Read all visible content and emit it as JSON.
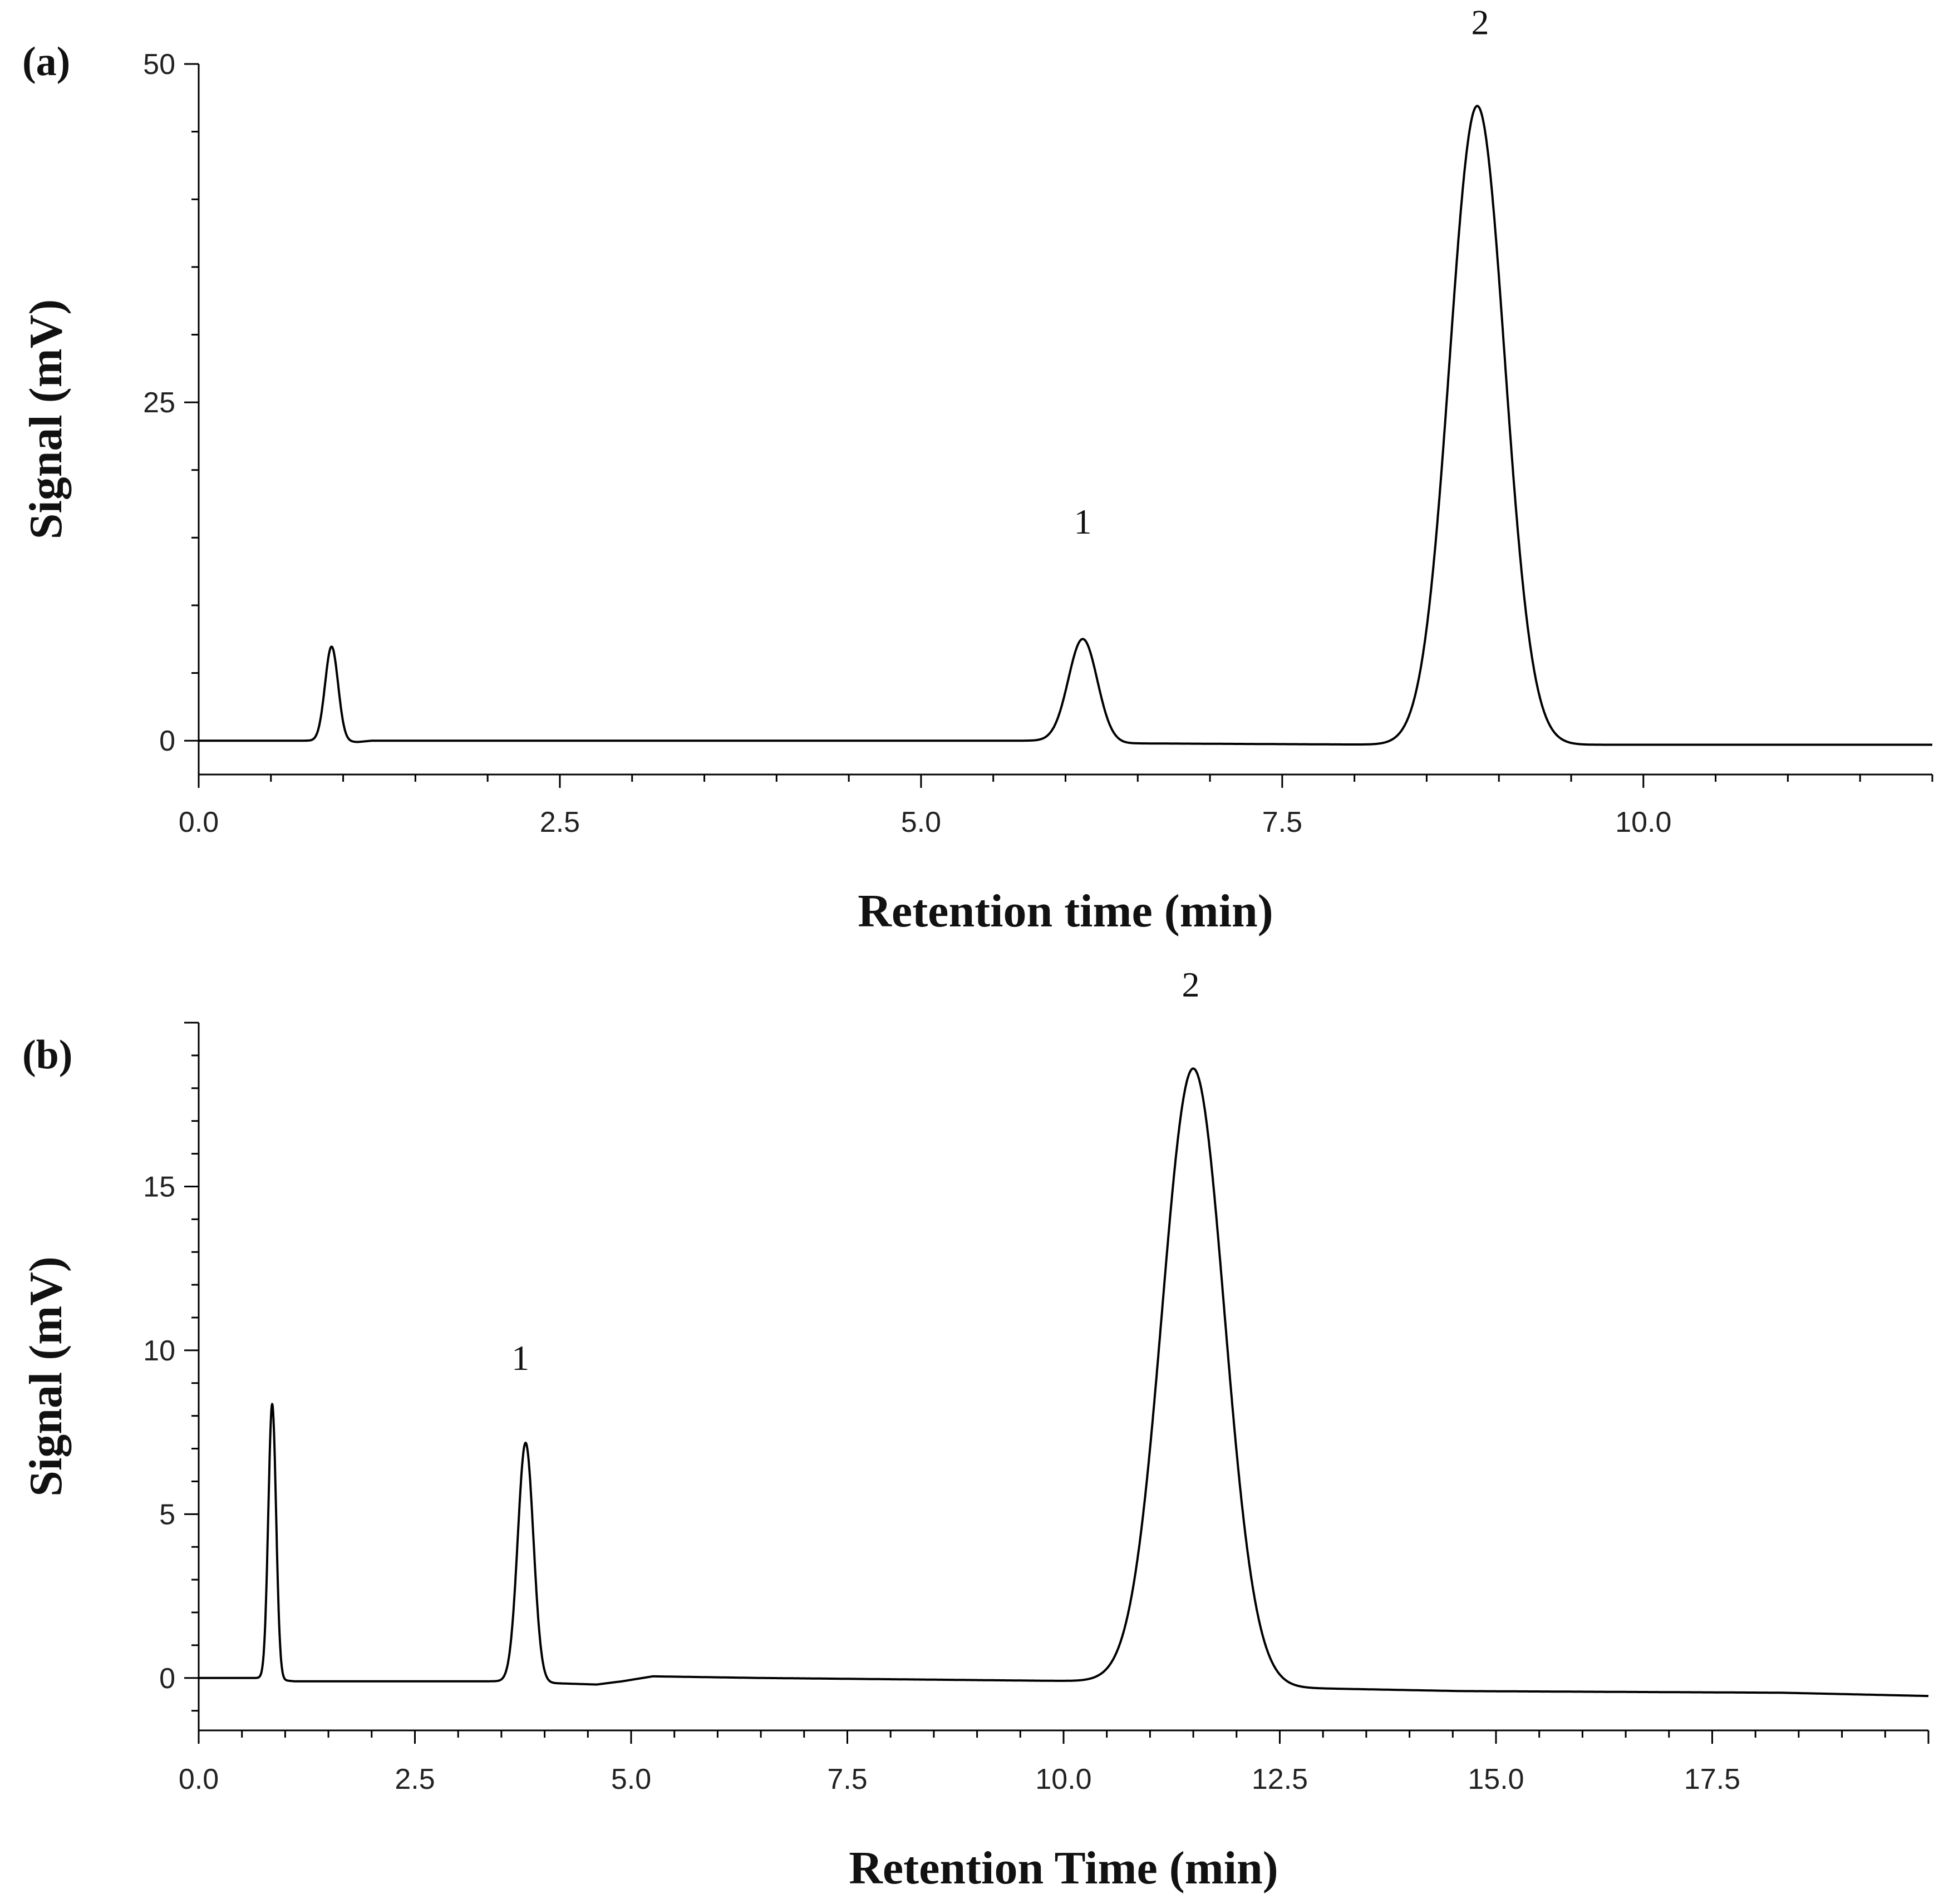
{
  "chart_data": [
    {
      "type": "line",
      "panel_label": "(a)",
      "xlabel": "Retention time (min)",
      "ylabel": "Signal (mV)",
      "xlim": [
        0,
        12
      ],
      "ylim": [
        -2.5,
        50
      ],
      "x_ticks": [
        "0.0",
        "2.5",
        "5.0",
        "7.5",
        "10.0"
      ],
      "y_ticks": [
        "0",
        "25",
        "50"
      ],
      "grid": false,
      "series": [
        {
          "baseline": [
            [
              0,
              0
            ],
            [
              0.75,
              0
            ],
            [
              1.1,
              -0.1
            ],
            [
              1.2,
              0
            ],
            [
              5.9,
              0
            ],
            [
              6.4,
              -0.2
            ],
            [
              6.5,
              -0.2
            ],
            [
              8.3,
              -0.3
            ],
            [
              9.6,
              -0.3
            ],
            [
              12,
              -0.3
            ]
          ],
          "peaks": [
            {
              "rt": 0.92,
              "height": 7.0,
              "sigma": 0.045
            },
            {
              "rt": 6.12,
              "height": 7.6,
              "sigma": 0.1
            },
            {
              "rt": 8.85,
              "height": 47.2,
              "sigma": 0.19
            }
          ]
        }
      ],
      "annotations": [
        {
          "text": "1",
          "x": 6.12,
          "y": 15.3
        },
        {
          "text": "2",
          "x": 8.87,
          "y": 52.2
        }
      ]
    },
    {
      "type": "line",
      "panel_label": "(b)",
      "xlabel": "Retention Time (min)",
      "ylabel": "Signal (mV)",
      "xlim": [
        0,
        20
      ],
      "ylim": [
        -1.6,
        20
      ],
      "x_ticks": [
        "0.0",
        "2.5",
        "5.0",
        "7.5",
        "10.0",
        "12.5",
        "15.0",
        "17.5"
      ],
      "y_ticks": [
        "0",
        "5",
        "10",
        "15"
      ],
      "grid": false,
      "series": [
        {
          "baseline": [
            [
              0,
              0
            ],
            [
              0.7,
              0
            ],
            [
              1.1,
              -0.1
            ],
            [
              3.6,
              -0.1
            ],
            [
              4.0,
              -0.15
            ],
            [
              4.6,
              -0.2
            ],
            [
              4.9,
              -0.1
            ],
            [
              5.25,
              0.05
            ],
            [
              6.5,
              0
            ],
            [
              10.4,
              -0.1
            ],
            [
              12.6,
              -0.3
            ],
            [
              14.6,
              -0.4
            ],
            [
              18.3,
              -0.45
            ],
            [
              20,
              -0.55
            ]
          ],
          "peaks": [
            {
              "rt": 0.85,
              "height": 8.4,
              "sigma": 0.045
            },
            {
              "rt": 3.78,
              "height": 7.3,
              "sigma": 0.09
            },
            {
              "rt": 11.5,
              "height": 18.8,
              "sigma": 0.36
            }
          ]
        }
      ],
      "annotations": [
        {
          "text": "1",
          "x": 3.72,
          "y": 9.4
        },
        {
          "text": "2",
          "x": 11.47,
          "y": 20.8
        }
      ]
    }
  ]
}
